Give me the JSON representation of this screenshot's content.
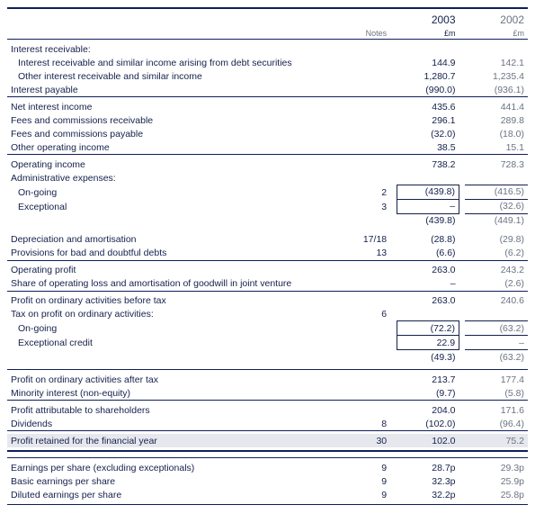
{
  "header": {
    "year_current": "2003",
    "year_prior": "2002",
    "notes_label": "Notes",
    "unit_current": "£m",
    "unit_prior": "£m"
  },
  "rows": [
    {
      "kind": "rule-top-strong"
    },
    {
      "kind": "year"
    },
    {
      "kind": "unit"
    },
    {
      "kind": "rule-top"
    },
    {
      "kind": "line",
      "label": "Interest receivable:",
      "indent": 0
    },
    {
      "kind": "line",
      "label": "Interest receivable and similar income arising from debt securities",
      "indent": 1,
      "v2003": "144.9",
      "v2002": "142.1"
    },
    {
      "kind": "line",
      "label": "Other interest receivable and similar income",
      "indent": 1,
      "v2003": "1,280.7",
      "v2002": "1,235.4"
    },
    {
      "kind": "line",
      "label": "Interest payable",
      "indent": 0,
      "v2003": "(990.0)",
      "v2002": "(936.1)"
    },
    {
      "kind": "rule-top"
    },
    {
      "kind": "line",
      "label": "Net interest income",
      "indent": 0,
      "v2003": "435.6",
      "v2002": "441.4"
    },
    {
      "kind": "line",
      "label": "Fees and commissions receivable",
      "indent": 0,
      "v2003": "296.1",
      "v2002": "289.8"
    },
    {
      "kind": "line",
      "label": "Fees and commissions payable",
      "indent": 0,
      "v2003": "(32.0)",
      "v2002": "(18.0)"
    },
    {
      "kind": "line",
      "label": "Other operating income",
      "indent": 0,
      "v2003": "38.5",
      "v2002": "15.1"
    },
    {
      "kind": "rule-top"
    },
    {
      "kind": "line",
      "label": "Operating income",
      "indent": 0,
      "v2003": "738.2",
      "v2002": "728.3"
    },
    {
      "kind": "line",
      "label": "Administrative expenses:",
      "indent": 0
    },
    {
      "kind": "boxed",
      "label": "On-going",
      "indent": 1,
      "note": "2",
      "v2003": "(439.8)",
      "v2002": "(416.5)"
    },
    {
      "kind": "boxed",
      "label": "Exceptional",
      "indent": 1,
      "note": "3",
      "v2003": "–",
      "v2002": "(32.6)"
    },
    {
      "kind": "subsum",
      "v2003": "(439.8)",
      "v2002": "(449.1)"
    },
    {
      "kind": "gap"
    },
    {
      "kind": "line",
      "label": "Depreciation and amortisation",
      "indent": 0,
      "note": "17/18",
      "v2003": "(28.8)",
      "v2002": "(29.8)"
    },
    {
      "kind": "line",
      "label": "Provisions for bad and doubtful debts",
      "indent": 0,
      "note": "13",
      "v2003": "(6.6)",
      "v2002": "(6.2)"
    },
    {
      "kind": "rule-top"
    },
    {
      "kind": "line",
      "label": "Operating profit",
      "indent": 0,
      "v2003": "263.0",
      "v2002": "243.2"
    },
    {
      "kind": "line",
      "label": "Share of operating loss and amortisation of goodwill in joint venture",
      "indent": 0,
      "v2003": "–",
      "v2002": "(2.6)"
    },
    {
      "kind": "rule-top"
    },
    {
      "kind": "line",
      "label": "Profit on ordinary activities before tax",
      "indent": 0,
      "v2003": "263.0",
      "v2002": "240.6"
    },
    {
      "kind": "line",
      "label": "Tax on profit on ordinary activities:",
      "indent": 0,
      "note": "6"
    },
    {
      "kind": "boxed",
      "label": "On-going",
      "indent": 1,
      "v2003": "(72.2)",
      "v2002": "(63.2)"
    },
    {
      "kind": "boxed",
      "label": "Exceptional credit",
      "indent": 1,
      "v2003": "22.9",
      "v2002": "–"
    },
    {
      "kind": "subsum",
      "v2003": "(49.3)",
      "v2002": "(63.2)"
    },
    {
      "kind": "gap"
    },
    {
      "kind": "rule-top"
    },
    {
      "kind": "line",
      "label": "Profit on ordinary activities after tax",
      "indent": 0,
      "v2003": "213.7",
      "v2002": "177.4"
    },
    {
      "kind": "line",
      "label": "Minority interest (non-equity)",
      "indent": 0,
      "v2003": "(9.7)",
      "v2002": "(5.8)"
    },
    {
      "kind": "rule-top"
    },
    {
      "kind": "line",
      "label": "Profit attributable to shareholders",
      "indent": 0,
      "v2003": "204.0",
      "v2002": "171.6"
    },
    {
      "kind": "line",
      "label": "Dividends",
      "indent": 0,
      "note": "8",
      "v2003": "(102.0)",
      "v2002": "(96.4)"
    },
    {
      "kind": "rule-top"
    },
    {
      "kind": "shade",
      "label": "Profit retained for the financial year",
      "indent": 0,
      "note": "30",
      "v2003": "102.0",
      "v2002": "75.2"
    },
    {
      "kind": "rule-bot-strong"
    },
    {
      "kind": "gap"
    },
    {
      "kind": "rule-top"
    },
    {
      "kind": "line",
      "label": "Earnings per share (excluding exceptionals)",
      "indent": 0,
      "note": "9",
      "v2003": "28.7p",
      "v2002": "29.3p"
    },
    {
      "kind": "line",
      "label": "Basic earnings per share",
      "indent": 0,
      "note": "9",
      "v2003": "32.3p",
      "v2002": "25.9p"
    },
    {
      "kind": "line",
      "label": "Diluted earnings per share",
      "indent": 0,
      "note": "9",
      "v2003": "32.2p",
      "v2002": "25.8p"
    },
    {
      "kind": "rule-bot"
    }
  ]
}
